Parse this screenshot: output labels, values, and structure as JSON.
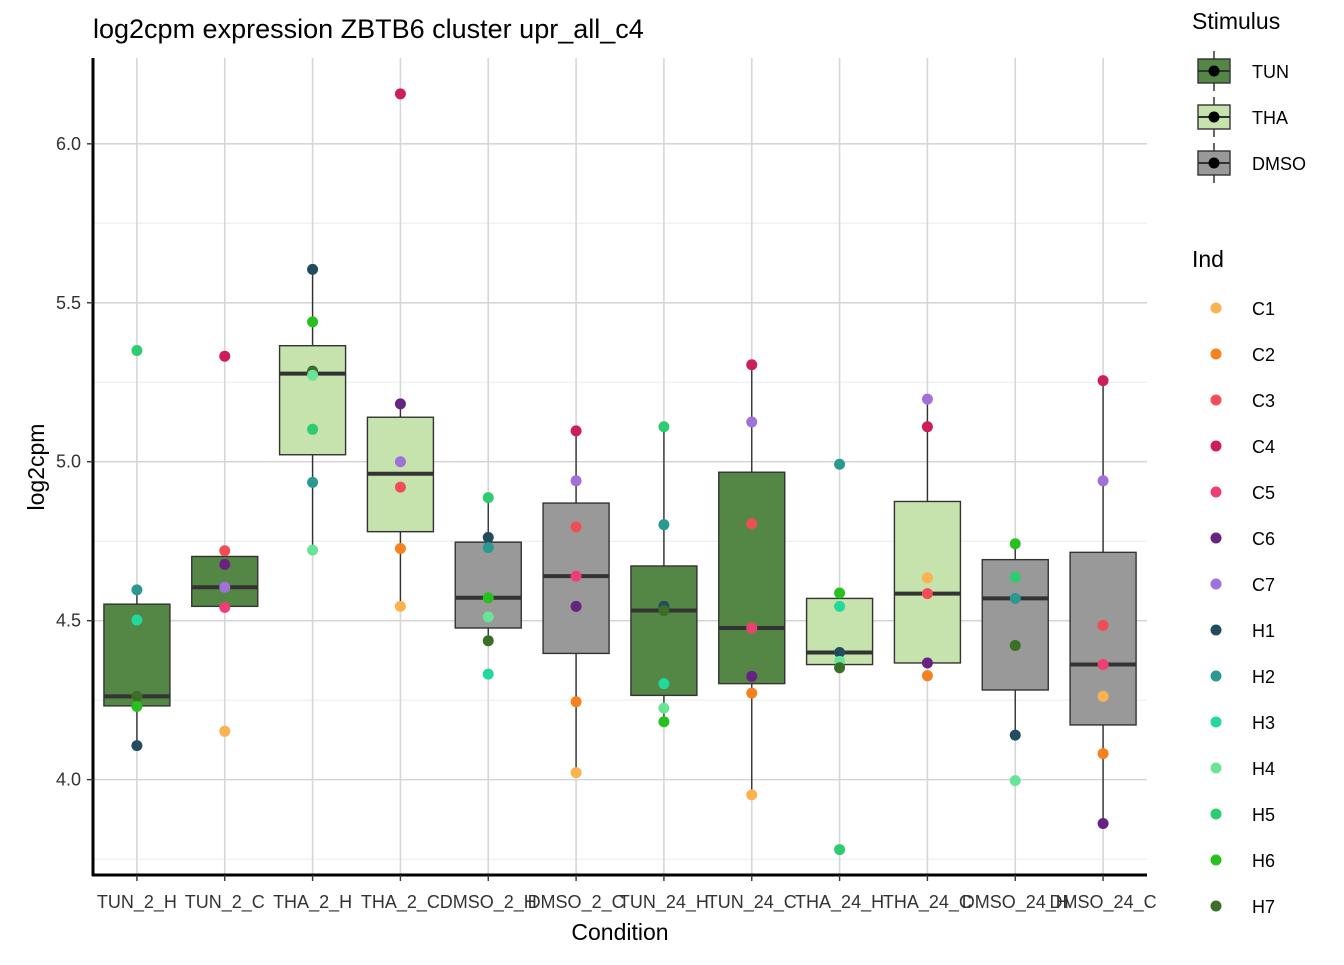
{
  "chart_data": {
    "type": "box",
    "title": "log2cpm expression ZBTB6 cluster upr_all_c4",
    "xlabel": "Condition",
    "ylabel": "log2cpm",
    "ylim": [
      3.7,
      6.27
    ],
    "yticks": [
      4.0,
      4.5,
      5.0,
      5.5,
      6.0
    ],
    "ytick_labels": [
      "4.0",
      "4.5",
      "5.0",
      "5.5",
      "6.0"
    ],
    "categories": [
      "TUN_2_H",
      "TUN_2_C",
      "THA_2_H",
      "THA_2_C",
      "DMSO_2_H",
      "DMSO_2_C",
      "TUN_24_H",
      "TUN_24_C",
      "THA_24_H",
      "THA_24_C",
      "DMSO_24_H",
      "DMSO_24_C"
    ],
    "stimulus_of_category": [
      "TUN",
      "TUN",
      "THA",
      "THA",
      "DMSO",
      "DMSO",
      "TUN",
      "TUN",
      "THA",
      "THA",
      "DMSO",
      "DMSO"
    ],
    "stimulus_colors": {
      "TUN": "#548745",
      "THA": "#c6e2ad",
      "DMSO": "#999999"
    },
    "boxes": [
      {
        "q1": 4.232,
        "median": 4.262,
        "q3": 4.552,
        "whisker_low": 4.107,
        "whisker_high": 4.597
      },
      {
        "q1": 4.545,
        "median": 4.605,
        "q3": 4.702,
        "whisker_low": 4.545,
        "whisker_high": 4.702
      },
      {
        "q1": 5.022,
        "median": 5.277,
        "q3": 5.365,
        "whisker_low": 4.722,
        "whisker_high": 5.605
      },
      {
        "q1": 4.78,
        "median": 4.962,
        "q3": 5.14,
        "whisker_low": 4.545,
        "whisker_high": 5.182
      },
      {
        "q1": 4.477,
        "median": 4.572,
        "q3": 4.747,
        "whisker_low": 4.437,
        "whisker_high": 4.887
      },
      {
        "q1": 4.397,
        "median": 4.64,
        "q3": 4.87,
        "whisker_low": 4.022,
        "whisker_high": 5.097
      },
      {
        "q1": 4.265,
        "median": 4.532,
        "q3": 4.672,
        "whisker_low": 4.182,
        "whisker_high": 5.11
      },
      {
        "q1": 4.302,
        "median": 4.477,
        "q3": 4.967,
        "whisker_low": 3.952,
        "whisker_high": 5.305
      },
      {
        "q1": 4.362,
        "median": 4.4,
        "q3": 4.57,
        "whisker_low": 4.352,
        "whisker_high": 4.587
      },
      {
        "q1": 4.367,
        "median": 4.585,
        "q3": 4.875,
        "whisker_low": 4.367,
        "whisker_high": 5.197
      },
      {
        "q1": 4.282,
        "median": 4.57,
        "q3": 4.692,
        "whisker_low": 4.14,
        "whisker_high": 4.742
      },
      {
        "q1": 4.172,
        "median": 4.362,
        "q3": 4.715,
        "whisker_low": 3.862,
        "whisker_high": 5.255
      }
    ],
    "individual_colors": {
      "C1": "#fbb24f",
      "C2": "#f5821f",
      "C3": "#f04e54",
      "C4": "#ce1e5a",
      "C5": "#ee3f74",
      "C6": "#662381",
      "C7": "#a071d8",
      "H1": "#234b5f",
      "H2": "#2a9a90",
      "H3": "#21d99a",
      "H4": "#69e397",
      "H5": "#2ecc71",
      "H6": "#27c01f",
      "H7": "#3b6e27"
    },
    "points": [
      {
        "cond": 0,
        "ind": "H5",
        "y": 5.35
      },
      {
        "cond": 0,
        "ind": "H2",
        "y": 4.597
      },
      {
        "cond": 0,
        "ind": "H3",
        "y": 4.502
      },
      {
        "cond": 0,
        "ind": "H7",
        "y": 4.262
      },
      {
        "cond": 0,
        "ind": "H6",
        "y": 4.23
      },
      {
        "cond": 0,
        "ind": "H1",
        "y": 4.107
      },
      {
        "cond": 1,
        "ind": "C4",
        "y": 5.332
      },
      {
        "cond": 1,
        "ind": "C3",
        "y": 4.72
      },
      {
        "cond": 1,
        "ind": "C6",
        "y": 4.677
      },
      {
        "cond": 1,
        "ind": "C7",
        "y": 4.605
      },
      {
        "cond": 1,
        "ind": "C5",
        "y": 4.542
      },
      {
        "cond": 1,
        "ind": "C1",
        "y": 4.152
      },
      {
        "cond": 2,
        "ind": "H1",
        "y": 5.605
      },
      {
        "cond": 2,
        "ind": "H6",
        "y": 5.44
      },
      {
        "cond": 2,
        "ind": "H7",
        "y": 5.285
      },
      {
        "cond": 2,
        "ind": "H4",
        "y": 5.272
      },
      {
        "cond": 2,
        "ind": "H5",
        "y": 5.102
      },
      {
        "cond": 2,
        "ind": "H2",
        "y": 4.935
      },
      {
        "cond": 2,
        "ind": "H4",
        "y": 4.722
      },
      {
        "cond": 3,
        "ind": "C4",
        "y": 6.157
      },
      {
        "cond": 3,
        "ind": "C6",
        "y": 5.182
      },
      {
        "cond": 3,
        "ind": "C7",
        "y": 5.0
      },
      {
        "cond": 3,
        "ind": "C3",
        "y": 4.92
      },
      {
        "cond": 3,
        "ind": "C2",
        "y": 4.727
      },
      {
        "cond": 3,
        "ind": "C1",
        "y": 4.545
      },
      {
        "cond": 4,
        "ind": "H5",
        "y": 4.887
      },
      {
        "cond": 4,
        "ind": "H1",
        "y": 4.762
      },
      {
        "cond": 4,
        "ind": "H2",
        "y": 4.73
      },
      {
        "cond": 4,
        "ind": "H6",
        "y": 4.572
      },
      {
        "cond": 4,
        "ind": "H4",
        "y": 4.512
      },
      {
        "cond": 4,
        "ind": "H7",
        "y": 4.437
      },
      {
        "cond": 4,
        "ind": "H3",
        "y": 4.332
      },
      {
        "cond": 5,
        "ind": "C4",
        "y": 5.097
      },
      {
        "cond": 5,
        "ind": "C7",
        "y": 4.94
      },
      {
        "cond": 5,
        "ind": "C3",
        "y": 4.795
      },
      {
        "cond": 5,
        "ind": "C5",
        "y": 4.64
      },
      {
        "cond": 5,
        "ind": "C6",
        "y": 4.545
      },
      {
        "cond": 5,
        "ind": "C2",
        "y": 4.245
      },
      {
        "cond": 5,
        "ind": "C1",
        "y": 4.022
      },
      {
        "cond": 6,
        "ind": "H5",
        "y": 5.11
      },
      {
        "cond": 6,
        "ind": "H2",
        "y": 4.802
      },
      {
        "cond": 6,
        "ind": "H1",
        "y": 4.545
      },
      {
        "cond": 6,
        "ind": "H7",
        "y": 4.532
      },
      {
        "cond": 6,
        "ind": "H3",
        "y": 4.302
      },
      {
        "cond": 6,
        "ind": "H4",
        "y": 4.225
      },
      {
        "cond": 6,
        "ind": "H6",
        "y": 4.182
      },
      {
        "cond": 7,
        "ind": "C4",
        "y": 5.305
      },
      {
        "cond": 7,
        "ind": "C7",
        "y": 5.125
      },
      {
        "cond": 7,
        "ind": "C3",
        "y": 4.805
      },
      {
        "cond": 7,
        "ind": "C5",
        "y": 4.477
      },
      {
        "cond": 7,
        "ind": "C6",
        "y": 4.325
      },
      {
        "cond": 7,
        "ind": "C2",
        "y": 4.272
      },
      {
        "cond": 7,
        "ind": "C1",
        "y": 3.952
      },
      {
        "cond": 8,
        "ind": "H2",
        "y": 4.992
      },
      {
        "cond": 8,
        "ind": "H6",
        "y": 4.587
      },
      {
        "cond": 8,
        "ind": "H3",
        "y": 4.545
      },
      {
        "cond": 8,
        "ind": "H1",
        "y": 4.4
      },
      {
        "cond": 8,
        "ind": "H4",
        "y": 4.372
      },
      {
        "cond": 8,
        "ind": "H7",
        "y": 4.352
      },
      {
        "cond": 8,
        "ind": "H5",
        "y": 3.78
      },
      {
        "cond": 9,
        "ind": "C7",
        "y": 5.197
      },
      {
        "cond": 9,
        "ind": "C4",
        "y": 5.11
      },
      {
        "cond": 9,
        "ind": "C1",
        "y": 4.635
      },
      {
        "cond": 9,
        "ind": "C3",
        "y": 4.585
      },
      {
        "cond": 9,
        "ind": "C6",
        "y": 4.367
      },
      {
        "cond": 9,
        "ind": "C2",
        "y": 4.327
      },
      {
        "cond": 10,
        "ind": "H6",
        "y": 4.742
      },
      {
        "cond": 10,
        "ind": "H5",
        "y": 4.637
      },
      {
        "cond": 10,
        "ind": "H2",
        "y": 4.57
      },
      {
        "cond": 10,
        "ind": "H7",
        "y": 4.422
      },
      {
        "cond": 10,
        "ind": "H1",
        "y": 4.14
      },
      {
        "cond": 10,
        "ind": "H4",
        "y": 3.997
      },
      {
        "cond": 11,
        "ind": "C4",
        "y": 5.255
      },
      {
        "cond": 11,
        "ind": "C7",
        "y": 4.94
      },
      {
        "cond": 11,
        "ind": "C3",
        "y": 4.485
      },
      {
        "cond": 11,
        "ind": "C5",
        "y": 4.362
      },
      {
        "cond": 11,
        "ind": "C1",
        "y": 4.262
      },
      {
        "cond": 11,
        "ind": "C2",
        "y": 4.082
      },
      {
        "cond": 11,
        "ind": "C6",
        "y": 3.862
      }
    ],
    "legend_stimulus": {
      "title": "Stimulus",
      "entries": [
        "TUN",
        "THA",
        "DMSO"
      ]
    },
    "legend_ind": {
      "title": "Ind",
      "entries": [
        "C1",
        "C2",
        "C3",
        "C4",
        "C5",
        "C6",
        "C7",
        "H1",
        "H2",
        "H3",
        "H4",
        "H5",
        "H6",
        "H7"
      ]
    }
  }
}
